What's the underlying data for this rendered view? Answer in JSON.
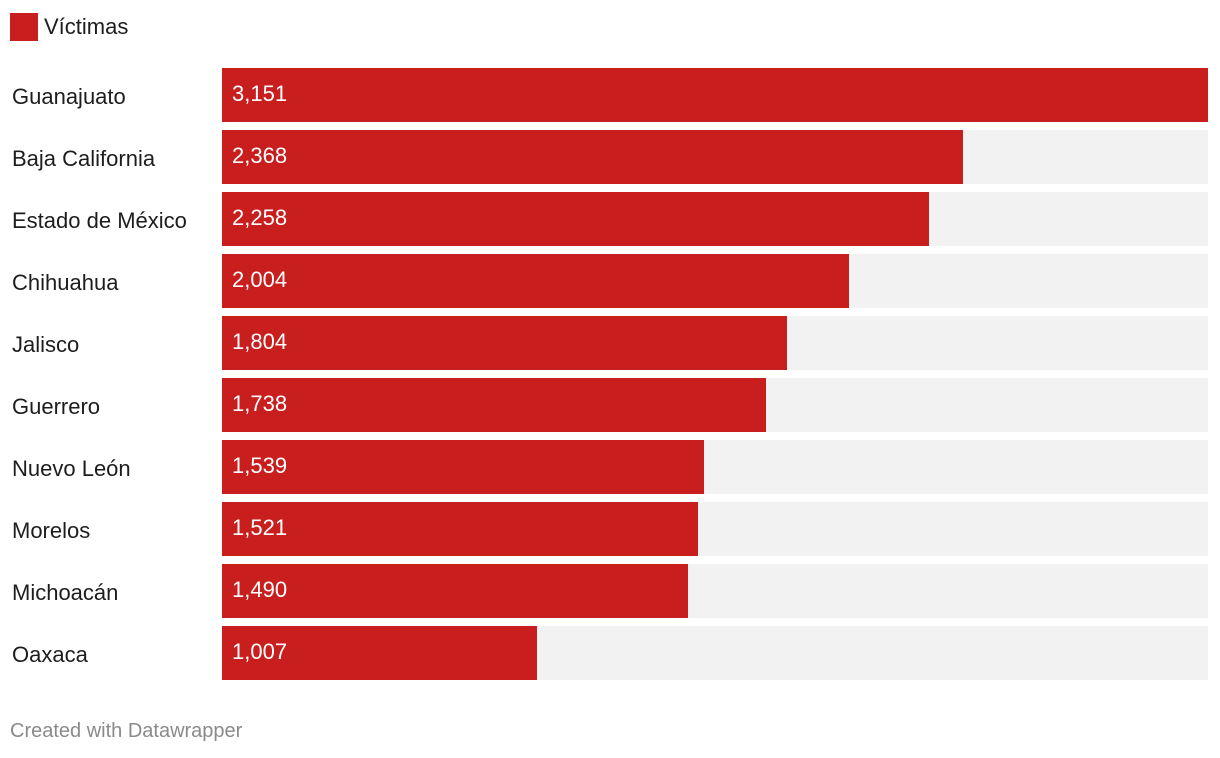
{
  "colors": {
    "bar": "#c81e1e",
    "track": "#f2f2f2"
  },
  "legend": {
    "label": "Víctimas"
  },
  "footer": {
    "credit": "Created with Datawrapper"
  },
  "chart_data": {
    "type": "bar",
    "orientation": "horizontal",
    "title": "",
    "xlabel": "",
    "ylabel": "",
    "series": [
      {
        "name": "Víctimas",
        "values": [
          3151,
          2368,
          2258,
          2004,
          1804,
          1738,
          1539,
          1521,
          1490,
          1007
        ]
      }
    ],
    "categories": [
      "Guanajuato",
      "Baja California",
      "Estado de México",
      "Chihuahua",
      "Jalisco",
      "Guerrero",
      "Nuevo León",
      "Morelos",
      "Michoacán",
      "Oaxaca"
    ],
    "value_labels": [
      "3,151",
      "2,368",
      "2,258",
      "2,004",
      "1,804",
      "1,738",
      "1,539",
      "1,521",
      "1,490",
      "1,007"
    ],
    "xlim": [
      0,
      3151
    ],
    "legend_position": "top-left"
  }
}
